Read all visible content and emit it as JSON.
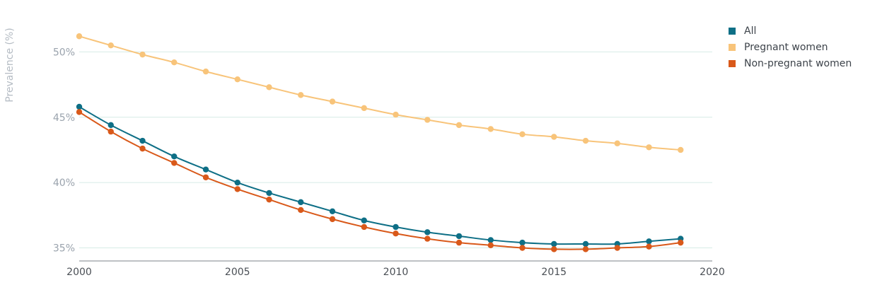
{
  "chart_data": {
    "type": "line",
    "title": "",
    "xlabel": "",
    "ylabel": "Prevalence (%)",
    "xlim": [
      2000,
      2020
    ],
    "ylim": [
      34,
      53
    ],
    "x_ticks": [
      2000,
      2005,
      2010,
      2015,
      2020
    ],
    "y_ticks": [
      35,
      40,
      45,
      50
    ],
    "y_tick_labels": [
      "35%",
      "40%",
      "45%",
      "50%"
    ],
    "grid": "horizontal",
    "legend": "top-right",
    "x": [
      2000,
      2001,
      2002,
      2003,
      2004,
      2005,
      2006,
      2007,
      2008,
      2009,
      2010,
      2011,
      2012,
      2013,
      2014,
      2015,
      2016,
      2017,
      2018,
      2019
    ],
    "series": [
      {
        "name": "All",
        "color": "#0e6f86",
        "values": [
          45.8,
          44.4,
          43.2,
          42.0,
          41.0,
          40.0,
          39.2,
          38.5,
          37.8,
          37.1,
          36.6,
          36.2,
          35.9,
          35.6,
          35.4,
          35.3,
          35.3,
          35.3,
          35.5,
          35.7
        ]
      },
      {
        "name": "Pregnant women",
        "color": "#f8c47a",
        "values": [
          51.2,
          50.5,
          49.8,
          49.2,
          48.5,
          47.9,
          47.3,
          46.7,
          46.2,
          45.7,
          45.2,
          44.8,
          44.4,
          44.1,
          43.7,
          43.5,
          43.2,
          43.0,
          42.7,
          42.5
        ]
      },
      {
        "name": "Non-pregnant women",
        "color": "#d9591a",
        "values": [
          45.4,
          43.9,
          42.6,
          41.5,
          40.4,
          39.5,
          38.7,
          37.9,
          37.2,
          36.6,
          36.1,
          35.7,
          35.4,
          35.2,
          35.0,
          34.9,
          34.9,
          35.0,
          35.1,
          35.4
        ]
      }
    ]
  }
}
